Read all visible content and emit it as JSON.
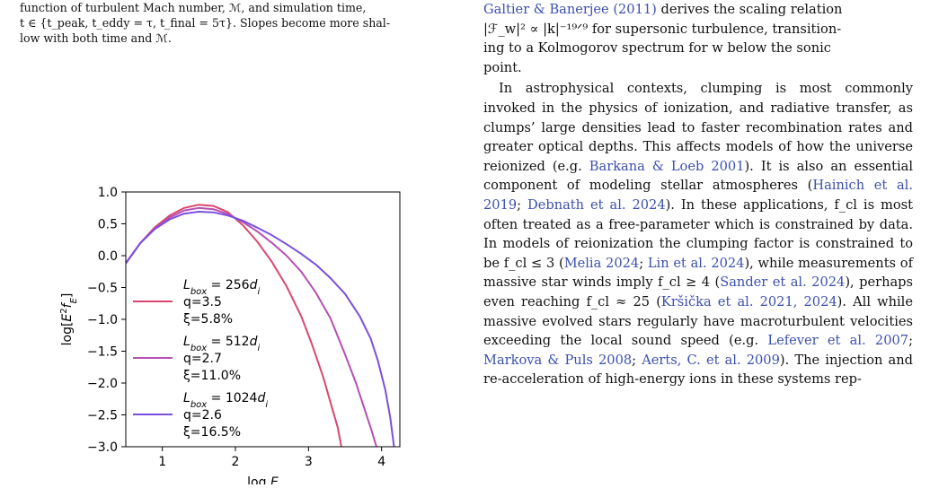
{
  "caption_tail": {
    "line1": "function of turbulent Mach number, ℳ, and simulation time,",
    "line2": "t ∈ {t_peak, t_eddy = τ, t_final = 5τ}. Slopes become more shal-",
    "line3": "low with both time and ℳ."
  },
  "right_column": {
    "p1_cite": "Galtier & Banerjee (2011)",
    "p1_rest_a": " derives the scaling relation",
    "p1_line2": "|ℱ_w|² ∝ |k|⁻¹⁹ᐟ⁹ for supersonic turbulence, transition-",
    "p1_line3": "ing to a Kolmogorov spectrum for w below the sonic",
    "p1_line4": "point.",
    "p2": [
      {
        "t": "In astrophysical contexts, clumping is most commonly invoked in the physics of ionization, and radiative transfer, as clumps’ large densities lead to faster recombination rates and greater optical depths. This affects models of how the universe reionized (e.g. ",
        "c": false
      },
      {
        "t": "Barkana & Loeb 2001",
        "c": true
      },
      {
        "t": "). It is also an essential component of modeling stellar atmospheres (",
        "c": false
      },
      {
        "t": "Hainich et al. 2019",
        "c": true
      },
      {
        "t": "; ",
        "c": false
      },
      {
        "t": "Debnath et al. 2024",
        "c": true
      },
      {
        "t": "). In these applications, f_cl is most often treated as a free-parameter which is constrained by data. In models of reionization the clumping factor is constrained to be f_cl ≤ 3 (",
        "c": false
      },
      {
        "t": "Melia 2024",
        "c": true
      },
      {
        "t": "; ",
        "c": false
      },
      {
        "t": "Lin et al. 2024",
        "c": true
      },
      {
        "t": "), while measurements of massive star winds imply f_cl ≥ 4 (",
        "c": false
      },
      {
        "t": "Sander et al. 2024",
        "c": true
      },
      {
        "t": "), perhaps even reaching f_cl ≈ 25 (",
        "c": false
      },
      {
        "t": "Kršička et al. 2021, 2024",
        "c": true
      },
      {
        "t": "). All while massive evolved stars regularly have macroturbulent velocities exceeding the local sound speed (e.g. ",
        "c": false
      },
      {
        "t": "Lefever et al. 2007",
        "c": true
      },
      {
        "t": "; ",
        "c": false
      },
      {
        "t": "Markova & Puls 2008",
        "c": true
      },
      {
        "t": "; ",
        "c": false
      },
      {
        "t": "Aerts, C. et al. 2009",
        "c": true
      },
      {
        "t": "). The injection and re-acceleration of high-energy ions in these systems rep-",
        "c": false
      }
    ]
  },
  "chart_data": {
    "type": "line",
    "xlabel": "log E",
    "ylabel": "log[E²f_E]",
    "xlim": [
      0.5,
      4.25
    ],
    "ylim": [
      -3.0,
      1.0
    ],
    "xticks": [
      "1",
      "2",
      "3",
      "4"
    ],
    "yticks": [
      "−3.0",
      "−2.5",
      "−2.0",
      "−1.5",
      "−1.0",
      "−0.5",
      "0.0",
      "0.5",
      "1.0"
    ],
    "grid": false,
    "legend_placement": "center-left",
    "series": [
      {
        "box": "L_box = 256d_i",
        "q": "q=3.5",
        "xi": "ξ=5.8%",
        "color": "#d9476f",
        "x": [
          0.5,
          0.7,
          0.9,
          1.1,
          1.3,
          1.5,
          1.7,
          1.9,
          2.1,
          2.3,
          2.5,
          2.7,
          2.9,
          3.05,
          3.2,
          3.3,
          3.4,
          3.45
        ],
        "y": [
          -0.12,
          0.2,
          0.45,
          0.63,
          0.75,
          0.8,
          0.78,
          0.68,
          0.48,
          0.22,
          -0.1,
          -0.48,
          -0.95,
          -1.4,
          -1.9,
          -2.3,
          -2.7,
          -3.0
        ]
      },
      {
        "box": "L_box = 512d_i",
        "q": "q=2.7",
        "xi": "ξ=11.0%",
        "color": "#b54fb3",
        "x": [
          0.5,
          0.7,
          0.9,
          1.1,
          1.3,
          1.5,
          1.7,
          1.9,
          2.1,
          2.3,
          2.5,
          2.7,
          2.9,
          3.1,
          3.3,
          3.5,
          3.65,
          3.75,
          3.85,
          3.93
        ],
        "y": [
          -0.12,
          0.2,
          0.43,
          0.6,
          0.71,
          0.75,
          0.73,
          0.65,
          0.53,
          0.38,
          0.2,
          0.0,
          -0.25,
          -0.58,
          -0.98,
          -1.55,
          -2.0,
          -2.35,
          -2.7,
          -3.0
        ]
      },
      {
        "box": "L_box = 1024d_i",
        "q": "q=2.6",
        "xi": "ξ=16.5%",
        "color": "#7a4fe0",
        "x": [
          0.5,
          0.7,
          0.9,
          1.1,
          1.3,
          1.5,
          1.7,
          1.9,
          2.1,
          2.3,
          2.5,
          2.7,
          2.9,
          3.1,
          3.3,
          3.5,
          3.7,
          3.85,
          3.95,
          4.05,
          4.12,
          4.17
        ],
        "y": [
          -0.12,
          0.2,
          0.42,
          0.57,
          0.66,
          0.69,
          0.68,
          0.63,
          0.55,
          0.44,
          0.32,
          0.18,
          0.03,
          -0.14,
          -0.35,
          -0.6,
          -0.95,
          -1.3,
          -1.65,
          -2.1,
          -2.55,
          -3.0
        ]
      }
    ]
  }
}
